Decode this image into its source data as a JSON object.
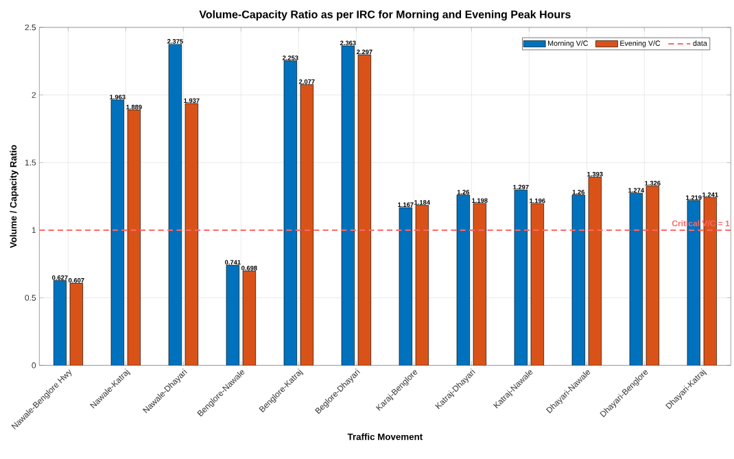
{
  "chart_data": {
    "type": "bar",
    "title": "Volume-Capacity Ratio as per IRC for Morning and Evening Peak Hours",
    "xlabel": "Traffic Movement",
    "ylabel": "Volume / Capacity Ratio",
    "categories": [
      "Nawale-Benglore Hwy",
      "Nawale-Katraj",
      "Nawale-Dhayari",
      "Benglore-Nawale",
      "Benglore-Katraj",
      "Beglore-Dhayari",
      "Karaj-Benglore",
      "Katraj-Dhayari",
      "Katraj-Nawale",
      "Dhayari-Nawale",
      "Dhayari-Benglore",
      "Dhayari-Katraj"
    ],
    "series": [
      {
        "name": "Morning V/C",
        "color": "#0072bd",
        "values": [
          0.627,
          1.963,
          2.375,
          0.741,
          2.253,
          2.363,
          1.167,
          1.26,
          1.297,
          1.26,
          1.274,
          1.219
        ]
      },
      {
        "name": "Evening V/C",
        "color": "#d95319",
        "values": [
          0.607,
          1.889,
          1.937,
          0.698,
          2.077,
          2.297,
          1.184,
          1.198,
          1.196,
          1.393,
          1.326,
          1.241
        ]
      }
    ],
    "ylim": [
      0,
      2.5
    ],
    "yticks": [
      0,
      0.5,
      1,
      1.5,
      2,
      2.5
    ],
    "grid": true,
    "legend": "top right",
    "data_labels": true,
    "ref_lines": [
      {
        "axis": "y",
        "value": 1,
        "label": "Critical V/C = 1",
        "color": "#ff6666",
        "line_style": "dashed"
      }
    ],
    "annotations": [
      "data"
    ]
  }
}
